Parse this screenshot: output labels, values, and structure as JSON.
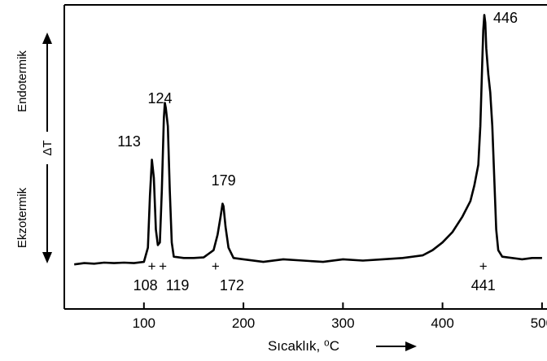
{
  "chart_data": {
    "type": "line",
    "xlabel": "Sıcaklık, ⁰C",
    "ylabel": "ΔT",
    "endo_label": "Endotermik",
    "exo_label": "Ekzotermik",
    "xlim": [
      20,
      505
    ],
    "ylim": [
      0,
      1
    ],
    "xticks": [
      100,
      200,
      300,
      400,
      500
    ],
    "grid": false,
    "peaks": [
      {
        "label": "113",
        "x": 108
      },
      {
        "label": "124",
        "x": 121
      },
      {
        "label": "179",
        "x": 180
      },
      {
        "label": "446",
        "x": 442
      }
    ],
    "onsets": [
      {
        "label": "108",
        "x": 108
      },
      {
        "label": "119",
        "x": 119
      },
      {
        "label": "172",
        "x": 172
      },
      {
        "label": "441",
        "x": 441
      }
    ],
    "series": [
      {
        "x": [
          30,
          40,
          50,
          60,
          70,
          80,
          90,
          100,
          104,
          106,
          108,
          110,
          112,
          114,
          116,
          118,
          120,
          121,
          122,
          124,
          126,
          128,
          130,
          140,
          150,
          160,
          170,
          174,
          177,
          179,
          180,
          182,
          185,
          190,
          200,
          220,
          240,
          260,
          280,
          300,
          320,
          340,
          360,
          380,
          390,
          400,
          410,
          420,
          428,
          432,
          436,
          438,
          440,
          441,
          442,
          443,
          444,
          446,
          448,
          450,
          452,
          454,
          456,
          460,
          470,
          480,
          490,
          500
        ],
        "y": [
          0.015,
          0.02,
          0.018,
          0.022,
          0.02,
          0.022,
          0.02,
          0.025,
          0.08,
          0.28,
          0.42,
          0.35,
          0.15,
          0.09,
          0.1,
          0.3,
          0.58,
          0.64,
          0.62,
          0.55,
          0.3,
          0.1,
          0.045,
          0.04,
          0.04,
          0.042,
          0.07,
          0.13,
          0.2,
          0.25,
          0.24,
          0.16,
          0.08,
          0.04,
          0.035,
          0.025,
          0.035,
          0.03,
          0.025,
          0.035,
          0.03,
          0.035,
          0.04,
          0.05,
          0.07,
          0.1,
          0.14,
          0.2,
          0.26,
          0.32,
          0.4,
          0.55,
          0.8,
          0.92,
          0.98,
          0.95,
          0.85,
          0.75,
          0.68,
          0.55,
          0.35,
          0.15,
          0.07,
          0.045,
          0.04,
          0.035,
          0.04,
          0.04
        ]
      }
    ]
  }
}
